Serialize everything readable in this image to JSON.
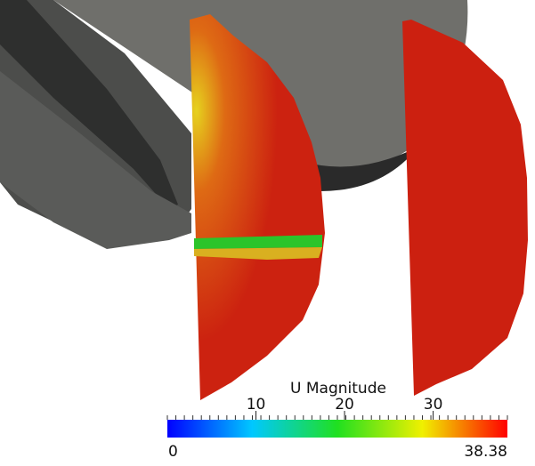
{
  "colorbar": {
    "title": "U Magnitude",
    "range": [
      0,
      38.38
    ],
    "ticks": [
      10,
      20,
      30
    ]
  }
}
